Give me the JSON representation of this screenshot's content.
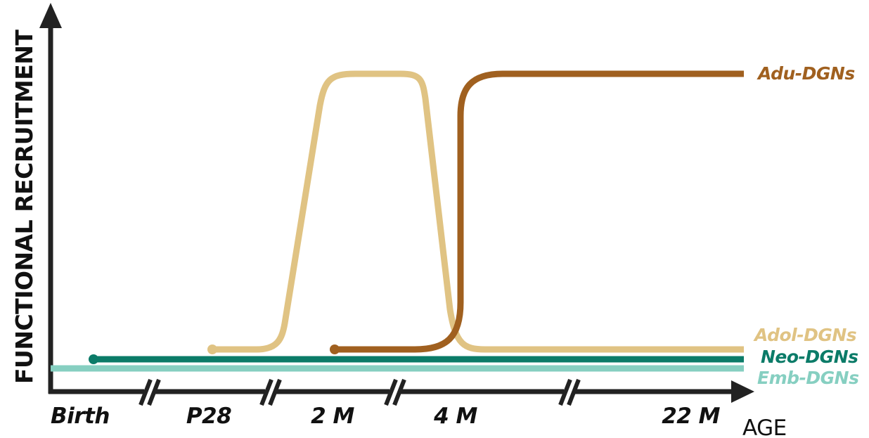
{
  "chart_data": {
    "type": "line",
    "xlabel": "AGE",
    "ylabel": "FUNCTIONAL RECRUITMENT",
    "x_ticks": [
      "Birth",
      "P28",
      "2 M",
      "4 M",
      "22 M"
    ],
    "axis_breaks": true,
    "grid": false,
    "legend": "series labels at right end of lines",
    "series": [
      {
        "name": "Adu-DGNs",
        "color": "#A0601F",
        "shape": "step up from low to high plateau",
        "start": "between P28 and 2 M",
        "rise": "around 4 M",
        "x": [
          2.0,
          2.3,
          2.45,
          2.55,
          2.7,
          5.0
        ],
        "values": [
          0.05,
          0.06,
          0.35,
          0.95,
          1.0,
          1.0
        ]
      },
      {
        "name": "Adol-DGNs",
        "color": "#E0C383",
        "shape": "transient peak between P28 and 4 M",
        "x": [
          1.0,
          1.3,
          1.6,
          1.8,
          2.3,
          2.5,
          2.7,
          5.0
        ],
        "values": [
          0.05,
          0.06,
          0.95,
          1.0,
          1.0,
          0.95,
          0.06,
          0.05
        ]
      },
      {
        "name": "Neo-DGNs",
        "color": "#0B7B68",
        "shape": "flat low from Birth",
        "x": [
          0.0,
          5.0
        ],
        "values": [
          0.02,
          0.02
        ]
      },
      {
        "name": "Emb-DGNs",
        "color": "#86CFC1",
        "shape": "flat lowest along axis",
        "x": [
          -0.3,
          5.0
        ],
        "values": [
          0.0,
          0.0
        ]
      }
    ]
  }
}
